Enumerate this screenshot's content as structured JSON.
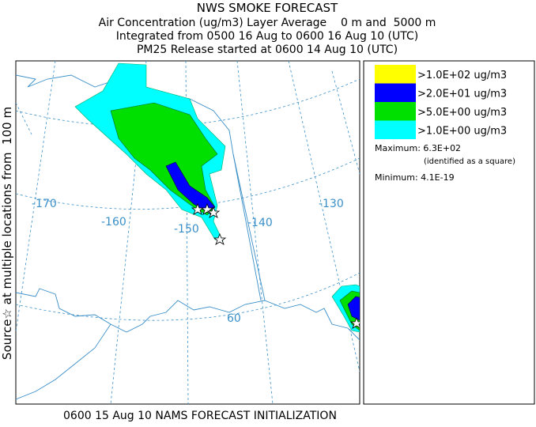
{
  "header": {
    "title": "NWS SMOKE FORECAST",
    "lines": [
      "Air Concentration (ug/m3) Layer Average    0 m and  5000 m",
      "Integrated from 0500 16 Aug to 0600 16 Aug 10 (UTC)",
      "PM25 Release started at 0600 14 Aug 10 (UTC)"
    ]
  },
  "side_label": "Source☆ at multiple locations from  100 m",
  "footer": "0600 15 Aug 10 NAMS FORECAST INITIALIZATION",
  "map": {
    "labels": [
      "-170",
      "-160",
      "-150",
      "-140",
      "-130",
      "60"
    ]
  },
  "legend": {
    "items": [
      {
        "label": ">1.0E+02 ug/m3",
        "color": "#ffff00"
      },
      {
        "label": ">2.0E+01 ug/m3",
        "color": "#0000ff"
      },
      {
        "label": ">5.0E+00 ug/m3",
        "color": "#00e000"
      },
      {
        "label": ">1.0E+00 ug/m3",
        "color": "#00ffff"
      }
    ],
    "maximum": "Maximum: 6.3E+02",
    "maximum_note": "(identified as a square)",
    "minimum": "Minimum: 4.1E-19"
  }
}
